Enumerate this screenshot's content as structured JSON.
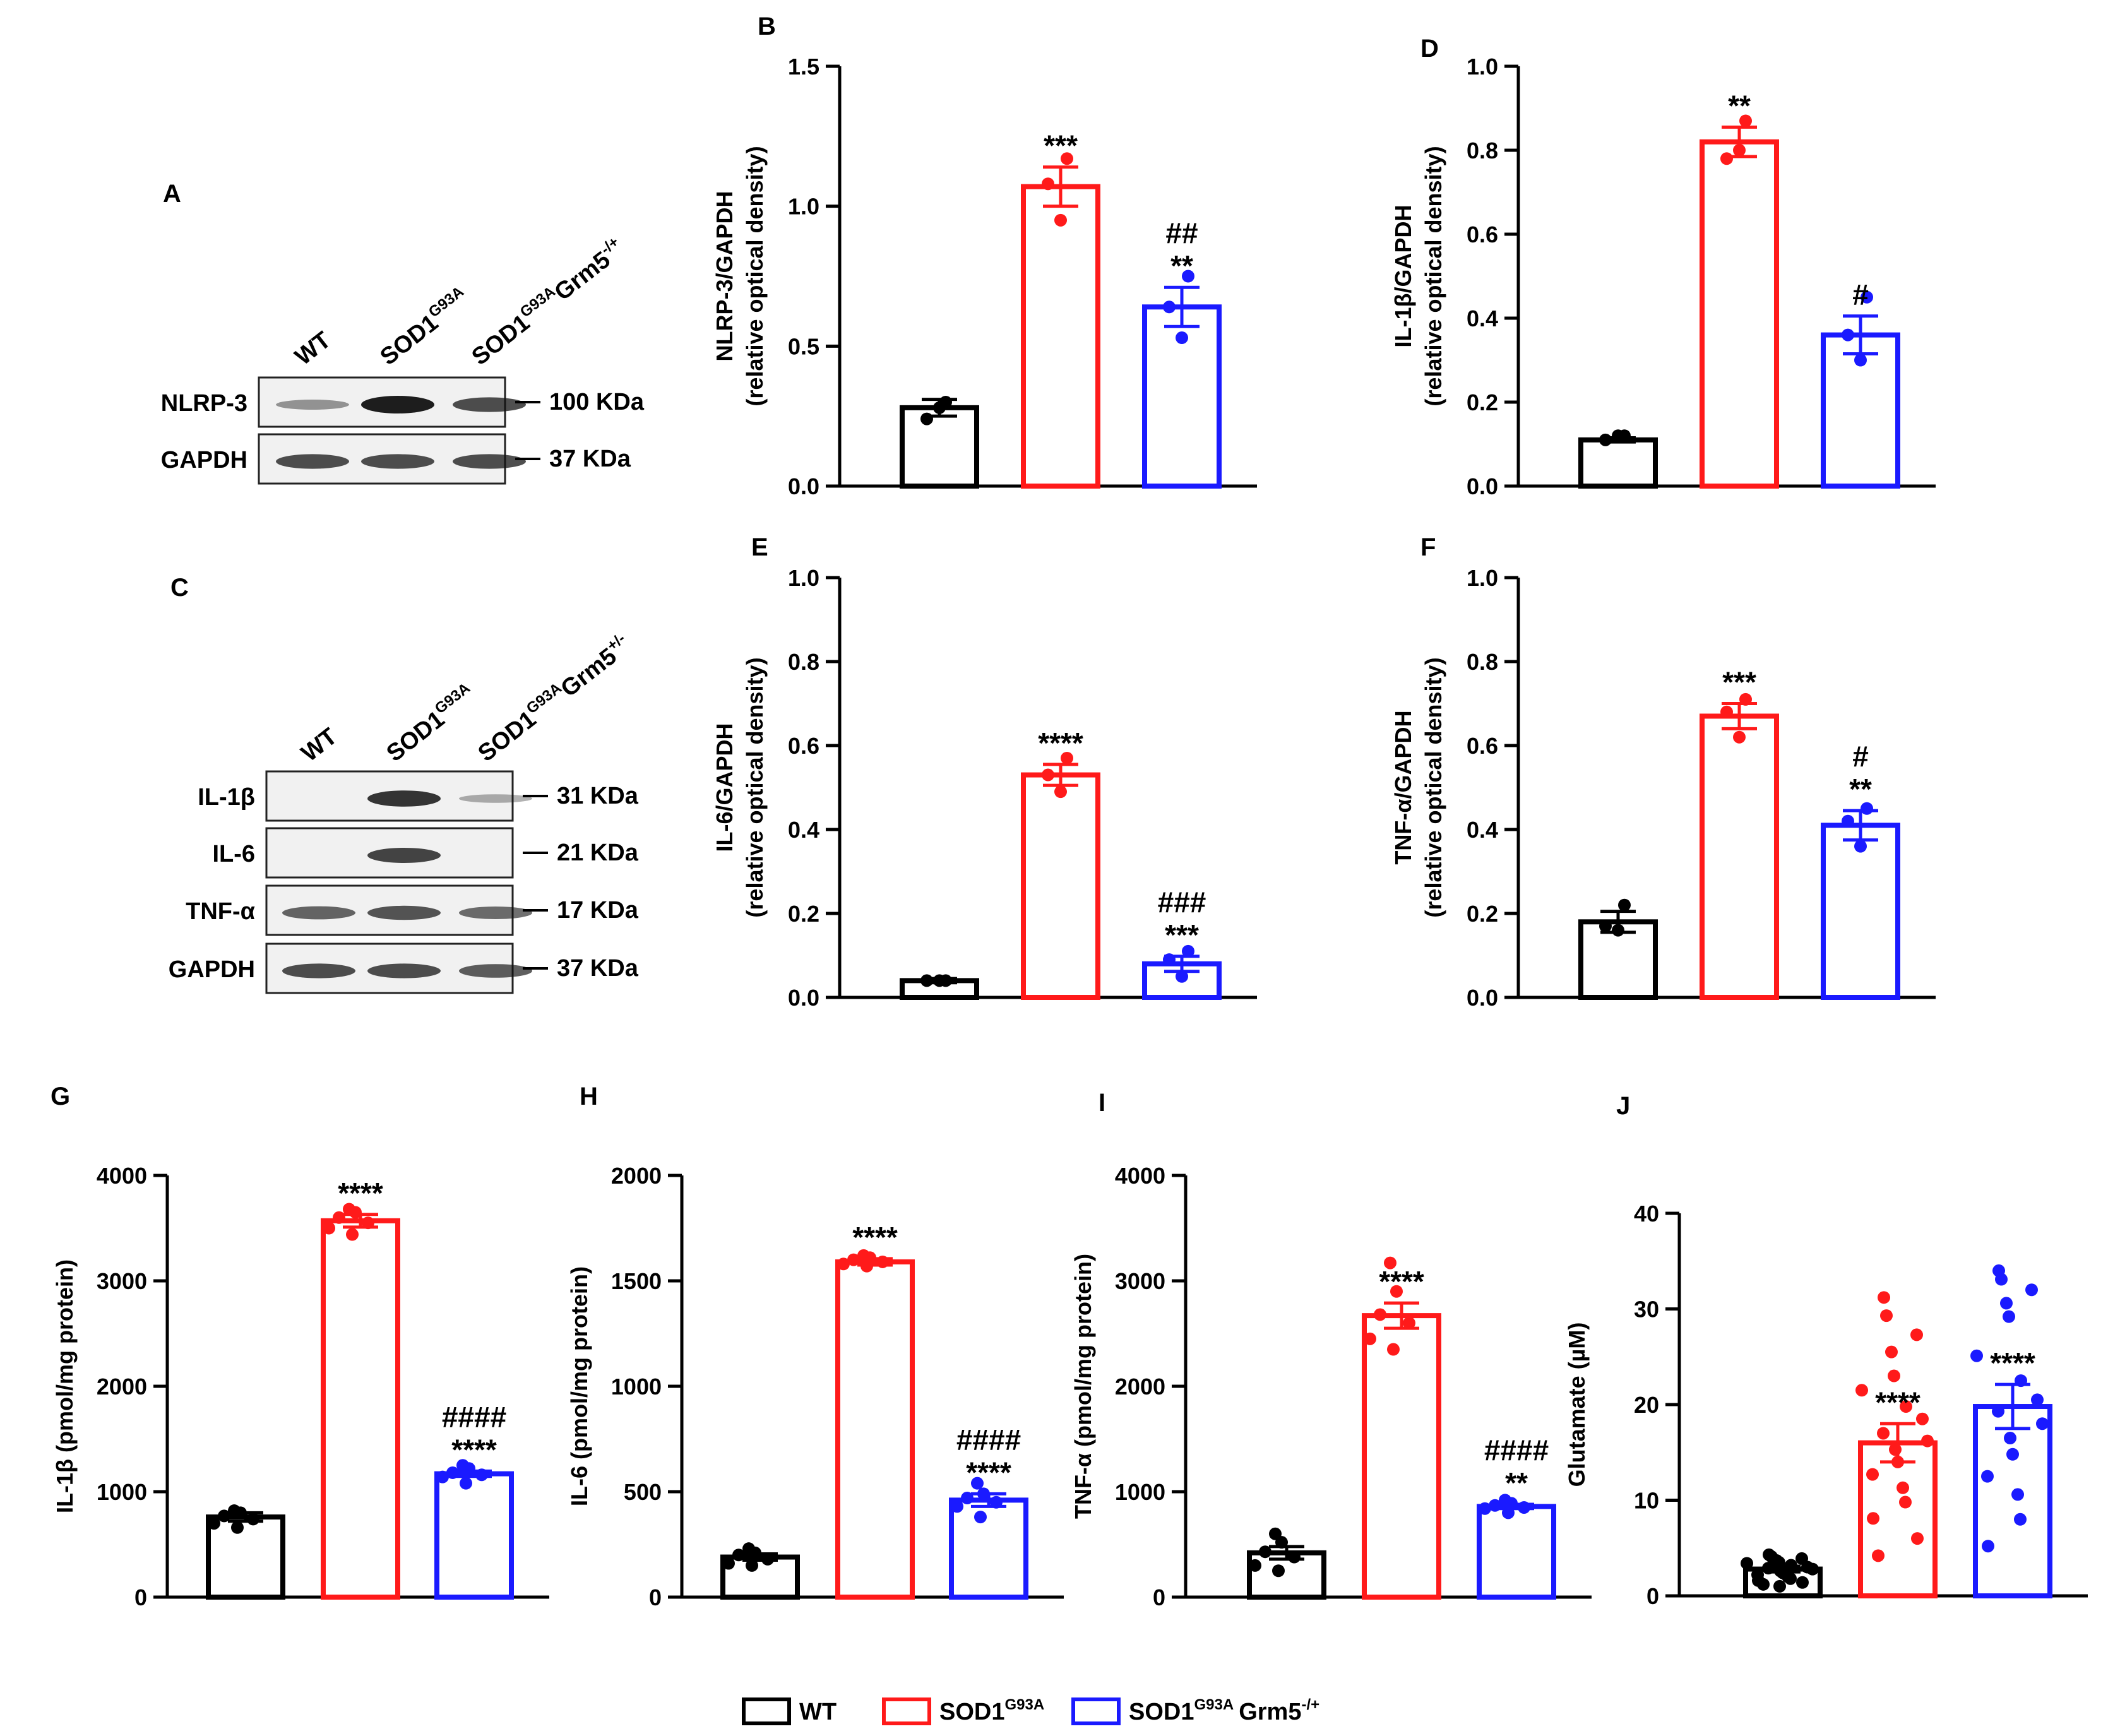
{
  "colors": {
    "wt": "#000000",
    "sod1": "#ff1a1a",
    "grm5": "#1a1aff"
  },
  "blot_a": {
    "panel_label": "A",
    "lanes": [
      {
        "main": "WT",
        "sup": "",
        "tail": ""
      },
      {
        "main": "SOD1",
        "sup": "G93A",
        "tail": ""
      },
      {
        "main": "SOD1",
        "sup": "G93A",
        "tail": "Grm5",
        "tail_sup": "-/+"
      }
    ],
    "rows": [
      {
        "name": "NLRP-3",
        "size": "100 KDa"
      },
      {
        "name": "GAPDH",
        "size": "37 KDa"
      }
    ]
  },
  "blot_c": {
    "panel_label": "C",
    "lanes": [
      {
        "main": "WT",
        "sup": "",
        "tail": ""
      },
      {
        "main": "SOD1",
        "sup": "G93A",
        "tail": ""
      },
      {
        "main": "SOD1",
        "sup": "G93A",
        "tail": "Grm5",
        "tail_sup": "+/-"
      }
    ],
    "rows": [
      {
        "name": "IL-1β",
        "size": "31 KDa"
      },
      {
        "name": "IL-6",
        "size": "21 KDa"
      },
      {
        "name": "TNF-α",
        "size": "17 KDa"
      },
      {
        "name": "GAPDH",
        "size": "37 KDa"
      }
    ]
  },
  "chart_data": [
    {
      "panel": "B",
      "type": "bar",
      "categories": [
        "WT",
        "SOD1G93A",
        "SOD1G93A Grm5-/+"
      ],
      "ylabel": "NLRP-3/GAPDH",
      "ylabel2": "(relative optical density)",
      "ylim": [
        0,
        1.5
      ],
      "ticks": [
        0,
        0.5,
        1.0,
        1.5
      ],
      "tick_labels": [
        "0.0",
        "0.5",
        "1.0",
        "1.5"
      ],
      "values": [
        0.28,
        1.07,
        0.64
      ],
      "errors": [
        0.03,
        0.07,
        0.07
      ],
      "points": [
        [
          0.3,
          0.28,
          0.24
        ],
        [
          1.17,
          0.95,
          1.08
        ],
        [
          0.75,
          0.53,
          0.64
        ]
      ],
      "annotations": [
        [],
        [
          "***"
        ],
        [
          "##",
          "**"
        ]
      ]
    },
    {
      "panel": "D",
      "type": "bar",
      "categories": [
        "WT",
        "SOD1G93A",
        "SOD1G93A Grm5-/+"
      ],
      "ylabel": "IL-1β/GAPDH",
      "ylabel2": "(relative optical density)",
      "ylim": [
        0,
        1.0
      ],
      "ticks": [
        0,
        0.2,
        0.4,
        0.6,
        0.8,
        1.0
      ],
      "tick_labels": [
        "0.0",
        "0.2",
        "0.4",
        "0.6",
        "0.8",
        "1.0"
      ],
      "values": [
        0.11,
        0.82,
        0.36
      ],
      "errors": [
        0.005,
        0.035,
        0.045
      ],
      "points": [
        [
          0.12,
          0.12,
          0.11
        ],
        [
          0.87,
          0.8,
          0.78
        ],
        [
          0.45,
          0.3,
          0.36
        ]
      ],
      "annotations": [
        [],
        [
          "**"
        ],
        [
          "#"
        ]
      ]
    },
    {
      "panel": "E",
      "type": "bar",
      "categories": [
        "WT",
        "SOD1G93A",
        "SOD1G93A Grm5-/+"
      ],
      "ylabel": "IL-6/GAPDH",
      "ylabel2": "(relative optical density)",
      "ylim": [
        0,
        1.0
      ],
      "ticks": [
        0,
        0.2,
        0.4,
        0.6,
        0.8,
        1.0
      ],
      "tick_labels": [
        "0.0",
        "0.2",
        "0.4",
        "0.6",
        "0.8",
        "1.0"
      ],
      "values": [
        0.04,
        0.53,
        0.08
      ],
      "errors": [
        0.005,
        0.025,
        0.018
      ],
      "points": [
        [
          0.04,
          0.04,
          0.04
        ],
        [
          0.57,
          0.49,
          0.53
        ],
        [
          0.11,
          0.05,
          0.09
        ]
      ],
      "annotations": [
        [],
        [
          "****"
        ],
        [
          "###",
          "***"
        ]
      ]
    },
    {
      "panel": "F",
      "type": "bar",
      "categories": [
        "WT",
        "SOD1G93A",
        "SOD1G93A Grm5-/+"
      ],
      "ylabel": "TNF-α/GAPDH",
      "ylabel2": "(relative optical density)",
      "ylim": [
        0,
        1.0
      ],
      "ticks": [
        0,
        0.2,
        0.4,
        0.6,
        0.8,
        1.0
      ],
      "tick_labels": [
        "0.0",
        "0.2",
        "0.4",
        "0.6",
        "0.8",
        "1.0"
      ],
      "values": [
        0.18,
        0.67,
        0.41
      ],
      "errors": [
        0.025,
        0.03,
        0.035
      ],
      "points": [
        [
          0.22,
          0.16,
          0.17
        ],
        [
          0.71,
          0.62,
          0.68
        ],
        [
          0.45,
          0.36,
          0.42
        ]
      ],
      "annotations": [
        [],
        [
          "***"
        ],
        [
          "#",
          "**"
        ]
      ]
    },
    {
      "panel": "G",
      "type": "bar",
      "categories": [
        "WT",
        "SOD1G93A",
        "SOD1G93A Grm5-/+"
      ],
      "ylabel": "IL-1β  (pmol/mg protein)",
      "ylabel2": "",
      "ylim": [
        0,
        4000
      ],
      "ticks": [
        0,
        1000,
        2000,
        3000,
        4000
      ],
      "tick_labels": [
        "0",
        "1000",
        "2000",
        "3000",
        "4000"
      ],
      "values": [
        760,
        3570,
        1170
      ],
      "errors": [
        40,
        60,
        25
      ],
      "points": [
        [
          820,
          800,
          770,
          740,
          700,
          660
        ],
        [
          3680,
          3650,
          3600,
          3550,
          3500,
          3440
        ],
        [
          1250,
          1220,
          1180,
          1160,
          1140,
          1080
        ]
      ],
      "annotations": [
        [],
        [
          "****"
        ],
        [
          "####",
          "****"
        ]
      ]
    },
    {
      "panel": "H",
      "type": "bar",
      "categories": [
        "WT",
        "SOD1G93A",
        "SOD1G93A Grm5-/+"
      ],
      "ylabel": "IL-6 (pmol/mg protein)",
      "ylabel2": "",
      "ylim": [
        0,
        2000
      ],
      "ticks": [
        0,
        500,
        1000,
        1500,
        2000
      ],
      "tick_labels": [
        "0",
        "500",
        "1000",
        "1500",
        "2000"
      ],
      "values": [
        190,
        1590,
        460
      ],
      "errors": [
        15,
        15,
        30
      ],
      "points": [
        [
          230,
          210,
          200,
          180,
          160,
          150
        ],
        [
          1620,
          1610,
          1600,
          1590,
          1580,
          1570
        ],
        [
          540,
          490,
          470,
          450,
          430,
          380
        ]
      ],
      "annotations": [
        [],
        [
          "****"
        ],
        [
          "####",
          "****"
        ]
      ]
    },
    {
      "panel": "I",
      "type": "bar",
      "categories": [
        "WT",
        "SOD1G93A",
        "SOD1G93A Grm5-/+"
      ],
      "ylabel": "TNF-α (pmol/mg protein)",
      "ylabel2": "",
      "ylim": [
        0,
        4000
      ],
      "ticks": [
        0,
        1000,
        2000,
        3000,
        4000
      ],
      "tick_labels": [
        "0",
        "1000",
        "2000",
        "3000",
        "4000"
      ],
      "values": [
        420,
        2670,
        860
      ],
      "errors": [
        60,
        120,
        20
      ],
      "points": [
        [
          600,
          520,
          430,
          380,
          300,
          250
        ],
        [
          3170,
          2900,
          2680,
          2600,
          2450,
          2350
        ],
        [
          920,
          890,
          870,
          850,
          840,
          800
        ]
      ],
      "annotations": [
        [],
        [
          "****"
        ],
        [
          "####",
          "**"
        ]
      ]
    },
    {
      "panel": "J",
      "type": "bar",
      "categories": [
        "WT",
        "SOD1G93A",
        "SOD1G93A Grm5-/+"
      ],
      "ylabel": "Glutamate (µM)",
      "ylabel2": "",
      "ylim": [
        0,
        40
      ],
      "ticks": [
        0,
        10,
        20,
        30,
        40
      ],
      "tick_labels": [
        "0",
        "10",
        "20",
        "30",
        "40"
      ],
      "values": [
        2.8,
        16.0,
        19.8
      ],
      "errors": [
        0.3,
        2.0,
        2.3
      ],
      "points": [
        [
          4.3,
          4.1,
          3.9,
          3.7,
          3.5,
          3.4,
          3.2,
          3.0,
          2.9,
          2.8,
          2.6,
          2.4,
          2.2,
          2.0,
          1.8,
          1.6,
          1.4,
          1.2,
          1.0
        ],
        [
          31.2,
          29.3,
          27.3,
          25.5,
          23.0,
          21.5,
          19.8,
          18.5,
          17.0,
          16.2,
          15.3,
          14.0,
          12.7,
          11.3,
          9.8,
          8.1,
          6.0,
          4.2
        ],
        [
          34.0,
          33.1,
          32.0,
          30.6,
          29.2,
          25.1,
          22.5,
          20.5,
          19.3,
          18.0,
          16.5,
          14.8,
          12.5,
          10.6,
          8.0,
          5.2
        ]
      ],
      "annotations": [
        [],
        [
          "****"
        ],
        [
          "****"
        ]
      ]
    }
  ],
  "legend": [
    {
      "key": "wt",
      "main": "WT",
      "sup": "",
      "tail": "",
      "tail_sup": ""
    },
    {
      "key": "sod1",
      "main": "SOD1",
      "sup": "G93A",
      "tail": "",
      "tail_sup": ""
    },
    {
      "key": "grm5",
      "main": "SOD1",
      "sup": "G93A",
      "tail": "Grm5",
      "tail_sup": "-/+"
    }
  ]
}
